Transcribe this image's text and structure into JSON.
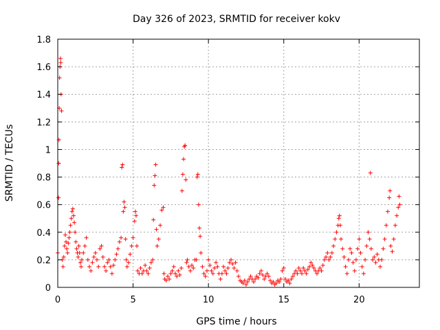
{
  "chart_data": {
    "type": "scatter",
    "title": "Day 326 of 2023, SRMTID for receiver kokv",
    "xlabel": "GPS time / hours",
    "ylabel": "SRMTID / TECUs",
    "xlim": [
      0,
      24
    ],
    "ylim": [
      0,
      1.8
    ],
    "xticks": [
      0,
      5,
      10,
      15,
      20
    ],
    "yticks": [
      0,
      0.2,
      0.4,
      0.6,
      0.8,
      1,
      1.2,
      1.4,
      1.6,
      1.8
    ],
    "xtick_labels": [
      "0",
      "5",
      "10",
      "15",
      "20"
    ],
    "ytick_labels": [
      "0",
      "0.2",
      "0.4",
      "0.6",
      "0.8",
      "1",
      "1.2",
      "1.4",
      "1.6",
      "1.8"
    ],
    "grid": true,
    "marker": "+",
    "color": "#ff0000",
    "series": [
      {
        "name": "SRMTID",
        "points": [
          [
            0.0,
            0.25
          ],
          [
            0.05,
            0.65
          ],
          [
            0.07,
            0.9
          ],
          [
            0.08,
            1.07
          ],
          [
            0.1,
            1.3
          ],
          [
            0.12,
            1.52
          ],
          [
            0.15,
            1.6
          ],
          [
            0.18,
            1.66
          ],
          [
            0.2,
            1.63
          ],
          [
            0.22,
            1.4
          ],
          [
            0.25,
            1.28
          ],
          [
            0.3,
            0.2
          ],
          [
            0.35,
            0.15
          ],
          [
            0.4,
            0.22
          ],
          [
            0.45,
            0.3
          ],
          [
            0.5,
            0.38
          ],
          [
            0.55,
            0.33
          ],
          [
            0.6,
            0.28
          ],
          [
            0.65,
            0.25
          ],
          [
            0.7,
            0.32
          ],
          [
            0.75,
            0.36
          ],
          [
            0.8,
            0.4
          ],
          [
            0.85,
            0.45
          ],
          [
            0.9,
            0.5
          ],
          [
            0.95,
            0.55
          ],
          [
            1.0,
            0.57
          ],
          [
            1.05,
            0.52
          ],
          [
            1.1,
            0.47
          ],
          [
            1.15,
            0.4
          ],
          [
            1.2,
            0.33
          ],
          [
            1.25,
            0.28
          ],
          [
            1.3,
            0.25
          ],
          [
            1.35,
            0.22
          ],
          [
            1.4,
            0.3
          ],
          [
            1.45,
            0.25
          ],
          [
            1.5,
            0.18
          ],
          [
            1.55,
            0.15
          ],
          [
            1.6,
            0.2
          ],
          [
            1.7,
            0.25
          ],
          [
            1.8,
            0.3
          ],
          [
            1.9,
            0.36
          ],
          [
            2.0,
            0.2
          ],
          [
            2.1,
            0.15
          ],
          [
            2.2,
            0.12
          ],
          [
            2.3,
            0.18
          ],
          [
            2.4,
            0.22
          ],
          [
            2.5,
            0.25
          ],
          [
            2.6,
            0.2
          ],
          [
            2.7,
            0.15
          ],
          [
            2.8,
            0.28
          ],
          [
            2.9,
            0.3
          ],
          [
            3.0,
            0.22
          ],
          [
            3.1,
            0.15
          ],
          [
            3.2,
            0.12
          ],
          [
            3.3,
            0.18
          ],
          [
            3.4,
            0.2
          ],
          [
            3.5,
            0.15
          ],
          [
            3.6,
            0.1
          ],
          [
            3.7,
            0.16
          ],
          [
            3.8,
            0.2
          ],
          [
            3.9,
            0.24
          ],
          [
            4.0,
            0.28
          ],
          [
            4.1,
            0.33
          ],
          [
            4.2,
            0.36
          ],
          [
            4.25,
            0.87
          ],
          [
            4.3,
            0.89
          ],
          [
            4.35,
            0.55
          ],
          [
            4.4,
            0.62
          ],
          [
            4.45,
            0.58
          ],
          [
            4.5,
            0.35
          ],
          [
            4.55,
            0.2
          ],
          [
            4.6,
            0.15
          ],
          [
            4.7,
            0.18
          ],
          [
            4.8,
            0.24
          ],
          [
            4.9,
            0.3
          ],
          [
            5.0,
            0.36
          ],
          [
            5.1,
            0.48
          ],
          [
            5.15,
            0.55
          ],
          [
            5.2,
            0.52
          ],
          [
            5.25,
            0.3
          ],
          [
            5.3,
            0.12
          ],
          [
            5.4,
            0.1
          ],
          [
            5.5,
            0.14
          ],
          [
            5.6,
            0.1
          ],
          [
            5.7,
            0.12
          ],
          [
            5.8,
            0.16
          ],
          [
            5.9,
            0.12
          ],
          [
            6.0,
            0.1
          ],
          [
            6.1,
            0.14
          ],
          [
            6.2,
            0.18
          ],
          [
            6.3,
            0.2
          ],
          [
            6.35,
            0.49
          ],
          [
            6.4,
            0.74
          ],
          [
            6.45,
            0.81
          ],
          [
            6.5,
            0.89
          ],
          [
            6.55,
            0.42
          ],
          [
            6.6,
            0.3
          ],
          [
            6.7,
            0.35
          ],
          [
            6.8,
            0.45
          ],
          [
            6.9,
            0.56
          ],
          [
            7.0,
            0.58
          ],
          [
            7.05,
            0.1
          ],
          [
            7.1,
            0.06
          ],
          [
            7.2,
            0.05
          ],
          [
            7.3,
            0.08
          ],
          [
            7.4,
            0.06
          ],
          [
            7.5,
            0.1
          ],
          [
            7.6,
            0.12
          ],
          [
            7.7,
            0.15
          ],
          [
            7.8,
            0.1
          ],
          [
            7.9,
            0.08
          ],
          [
            8.0,
            0.12
          ],
          [
            8.1,
            0.09
          ],
          [
            8.2,
            0.14
          ],
          [
            8.25,
            0.7
          ],
          [
            8.3,
            0.82
          ],
          [
            8.35,
            0.93
          ],
          [
            8.4,
            1.02
          ],
          [
            8.45,
            1.03
          ],
          [
            8.5,
            0.78
          ],
          [
            8.55,
            0.18
          ],
          [
            8.6,
            0.2
          ],
          [
            8.7,
            0.15
          ],
          [
            8.8,
            0.12
          ],
          [
            8.9,
            0.16
          ],
          [
            9.0,
            0.14
          ],
          [
            9.1,
            0.2
          ],
          [
            9.2,
            0.2
          ],
          [
            9.25,
            0.8
          ],
          [
            9.3,
            0.82
          ],
          [
            9.35,
            0.6
          ],
          [
            9.4,
            0.43
          ],
          [
            9.45,
            0.37
          ],
          [
            9.5,
            0.25
          ],
          [
            9.6,
            0.15
          ],
          [
            9.7,
            0.1
          ],
          [
            9.8,
            0.08
          ],
          [
            9.9,
            0.12
          ],
          [
            10.0,
            0.2
          ],
          [
            10.1,
            0.16
          ],
          [
            10.2,
            0.12
          ],
          [
            10.3,
            0.1
          ],
          [
            10.4,
            0.14
          ],
          [
            10.5,
            0.18
          ],
          [
            10.6,
            0.15
          ],
          [
            10.7,
            0.1
          ],
          [
            10.8,
            0.06
          ],
          [
            10.9,
            0.1
          ],
          [
            11.0,
            0.15
          ],
          [
            11.1,
            0.12
          ],
          [
            11.2,
            0.1
          ],
          [
            11.3,
            0.14
          ],
          [
            11.4,
            0.18
          ],
          [
            11.5,
            0.2
          ],
          [
            11.6,
            0.17
          ],
          [
            11.7,
            0.14
          ],
          [
            11.8,
            0.18
          ],
          [
            11.9,
            0.12
          ],
          [
            12.0,
            0.08
          ],
          [
            12.1,
            0.05
          ],
          [
            12.2,
            0.04
          ],
          [
            12.3,
            0.03
          ],
          [
            12.4,
            0.05
          ],
          [
            12.5,
            0.02
          ],
          [
            12.6,
            0.04
          ],
          [
            12.7,
            0.06
          ],
          [
            12.8,
            0.08
          ],
          [
            12.9,
            0.06
          ],
          [
            13.0,
            0.04
          ],
          [
            13.1,
            0.06
          ],
          [
            13.2,
            0.08
          ],
          [
            13.3,
            0.07
          ],
          [
            13.4,
            0.1
          ],
          [
            13.5,
            0.12
          ],
          [
            13.6,
            0.09
          ],
          [
            13.7,
            0.06
          ],
          [
            13.8,
            0.08
          ],
          [
            13.9,
            0.1
          ],
          [
            14.0,
            0.08
          ],
          [
            14.1,
            0.05
          ],
          [
            14.2,
            0.03
          ],
          [
            14.3,
            0.04
          ],
          [
            14.4,
            0.02
          ],
          [
            14.5,
            0.03
          ],
          [
            14.6,
            0.05
          ],
          [
            14.7,
            0.04
          ],
          [
            14.8,
            0.06
          ],
          [
            14.9,
            0.12
          ],
          [
            15.0,
            0.14
          ],
          [
            15.1,
            0.06
          ],
          [
            15.2,
            0.04
          ],
          [
            15.3,
            0.05
          ],
          [
            15.4,
            0.03
          ],
          [
            15.5,
            0.06
          ],
          [
            15.6,
            0.08
          ],
          [
            15.7,
            0.1
          ],
          [
            15.8,
            0.12
          ],
          [
            15.9,
            0.1
          ],
          [
            16.0,
            0.14
          ],
          [
            16.1,
            0.12
          ],
          [
            16.2,
            0.1
          ],
          [
            16.3,
            0.14
          ],
          [
            16.4,
            0.12
          ],
          [
            16.5,
            0.1
          ],
          [
            16.6,
            0.13
          ],
          [
            16.7,
            0.15
          ],
          [
            16.8,
            0.18
          ],
          [
            16.9,
            0.16
          ],
          [
            17.0,
            0.14
          ],
          [
            17.1,
            0.12
          ],
          [
            17.2,
            0.1
          ],
          [
            17.3,
            0.12
          ],
          [
            17.4,
            0.14
          ],
          [
            17.5,
            0.12
          ],
          [
            17.6,
            0.16
          ],
          [
            17.7,
            0.2
          ],
          [
            17.8,
            0.22
          ],
          [
            17.9,
            0.25
          ],
          [
            18.0,
            0.2
          ],
          [
            18.1,
            0.22
          ],
          [
            18.2,
            0.25
          ],
          [
            18.3,
            0.3
          ],
          [
            18.4,
            0.35
          ],
          [
            18.5,
            0.4
          ],
          [
            18.6,
            0.45
          ],
          [
            18.65,
            0.5
          ],
          [
            18.7,
            0.52
          ],
          [
            18.75,
            0.45
          ],
          [
            18.8,
            0.35
          ],
          [
            18.9,
            0.28
          ],
          [
            19.0,
            0.22
          ],
          [
            19.1,
            0.15
          ],
          [
            19.2,
            0.1
          ],
          [
            19.3,
            0.2
          ],
          [
            19.4,
            0.28
          ],
          [
            19.5,
            0.25
          ],
          [
            19.6,
            0.18
          ],
          [
            19.7,
            0.12
          ],
          [
            19.8,
            0.2
          ],
          [
            19.9,
            0.28
          ],
          [
            20.0,
            0.35
          ],
          [
            20.1,
            0.25
          ],
          [
            20.2,
            0.15
          ],
          [
            20.3,
            0.1
          ],
          [
            20.4,
            0.2
          ],
          [
            20.5,
            0.3
          ],
          [
            20.6,
            0.4
          ],
          [
            20.7,
            0.35
          ],
          [
            20.75,
            0.83
          ],
          [
            20.8,
            0.28
          ],
          [
            20.9,
            0.2
          ],
          [
            21.0,
            0.22
          ],
          [
            21.1,
            0.18
          ],
          [
            21.2,
            0.24
          ],
          [
            21.3,
            0.2
          ],
          [
            21.4,
            0.15
          ],
          [
            21.5,
            0.2
          ],
          [
            21.6,
            0.28
          ],
          [
            21.7,
            0.35
          ],
          [
            21.8,
            0.45
          ],
          [
            21.9,
            0.55
          ],
          [
            22.0,
            0.65
          ],
          [
            22.05,
            0.7
          ],
          [
            22.1,
            0.3
          ],
          [
            22.2,
            0.26
          ],
          [
            22.3,
            0.35
          ],
          [
            22.4,
            0.45
          ],
          [
            22.5,
            0.52
          ],
          [
            22.6,
            0.58
          ],
          [
            22.65,
            0.66
          ],
          [
            22.7,
            0.6
          ]
        ]
      }
    ]
  }
}
